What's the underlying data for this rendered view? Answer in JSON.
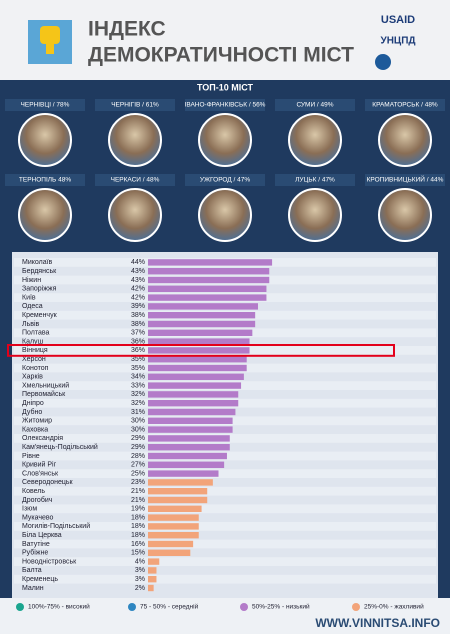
{
  "header": {
    "title_line1": "ІНДЕКС",
    "title_line2": "ДЕМОКРАТИЧНОСТІ МІСТ",
    "logos": [
      "USAID",
      "УНЦПД"
    ]
  },
  "top10": {
    "title": "ТОП-10 МІСТ",
    "cities": [
      "ЧЕРНІВЦІ / 78%",
      "ЧЕРНІГІВ / 61%",
      "ІВАНО-ФРАНКІВСЬК / 56%",
      "СУМИ / 49%",
      "КРАМАТОРСЬК / 48%",
      "ТЕРНОПІЛЬ 48%",
      "ЧЕРКАСИ / 48%",
      "УЖГОРОД / 47%",
      "ЛУЦЬК / 47%",
      "КРОПИВНИЦЬКИЙ / 44%"
    ]
  },
  "chart_data": {
    "type": "bar",
    "categories": [
      "Миколаїв",
      "Бердянськ",
      "Ніжин",
      "Запоріжжя",
      "Київ",
      "Одеса",
      "Кременчук",
      "Львів",
      "Полтава",
      "Калуш",
      "Вінниця",
      "Херсон",
      "Конотоп",
      "Харків",
      "Хмельницький",
      "Первомайськ",
      "Дніпро",
      "Дубно",
      "Житомир",
      "Каховка",
      "Олександрія",
      "Кам'янець-Подільський",
      "Рівне",
      "Кривий Ріг",
      "Слов'янськ",
      "Северодонецьк",
      "Ковель",
      "Дрогобич",
      "Ізюм",
      "Мукачево",
      "Могилів-Подільський",
      "Біла Церква",
      "Ватутіне",
      "Рубіжне",
      "Новодністровськ",
      "Балта",
      "Кременець",
      "Малин"
    ],
    "values": [
      44,
      43,
      43,
      42,
      42,
      39,
      38,
      38,
      37,
      36,
      36,
      35,
      35,
      34,
      33,
      32,
      32,
      31,
      30,
      30,
      29,
      29,
      28,
      27,
      25,
      23,
      21,
      21,
      19,
      18,
      18,
      18,
      16,
      15,
      4,
      3,
      3,
      2
    ],
    "value_labels": [
      "44%",
      "43%",
      "43%",
      "42%",
      "42%",
      "39%",
      "38%",
      "38%",
      "37%",
      "36%",
      "36%",
      "35%",
      "35%",
      "34%",
      "33%",
      "32%",
      "32%",
      "31%",
      "30%",
      "30%",
      "29%",
      "29%",
      "28%",
      "27%",
      "25%",
      "23%",
      "21%",
      "21%",
      "19%",
      "18%",
      "18%",
      "18%",
      "16%",
      "15%",
      "4%",
      "3%",
      "3%",
      "2%"
    ],
    "colors": [
      "#b37bc9",
      "#b37bc9",
      "#b37bc9",
      "#b37bc9",
      "#b37bc9",
      "#b37bc9",
      "#b37bc9",
      "#b37bc9",
      "#b37bc9",
      "#b37bc9",
      "#b37bc9",
      "#b37bc9",
      "#b37bc9",
      "#b37bc9",
      "#b37bc9",
      "#b37bc9",
      "#b37bc9",
      "#b37bc9",
      "#b37bc9",
      "#b37bc9",
      "#b37bc9",
      "#b37bc9",
      "#b37bc9",
      "#b37bc9",
      "#b37bc9",
      "#f2a47a",
      "#f2a47a",
      "#f2a47a",
      "#f2a47a",
      "#f2a47a",
      "#f2a47a",
      "#f2a47a",
      "#f2a47a",
      "#f2a47a",
      "#f2a47a",
      "#f2a47a",
      "#f2a47a",
      "#f2a47a"
    ],
    "xlim": [
      0,
      100
    ],
    "legend": [
      {
        "label": "100%-75% - високий",
        "color": "#1aa58f"
      },
      {
        "label": "75 - 50% - середній",
        "color": "#2e86c1"
      },
      {
        "label": "50%-25% - низький",
        "color": "#b37bc9"
      },
      {
        "label": "25%-0% - жахливий",
        "color": "#f2a47a"
      }
    ]
  },
  "watermark": "WWW.VINNITSA.INFO"
}
